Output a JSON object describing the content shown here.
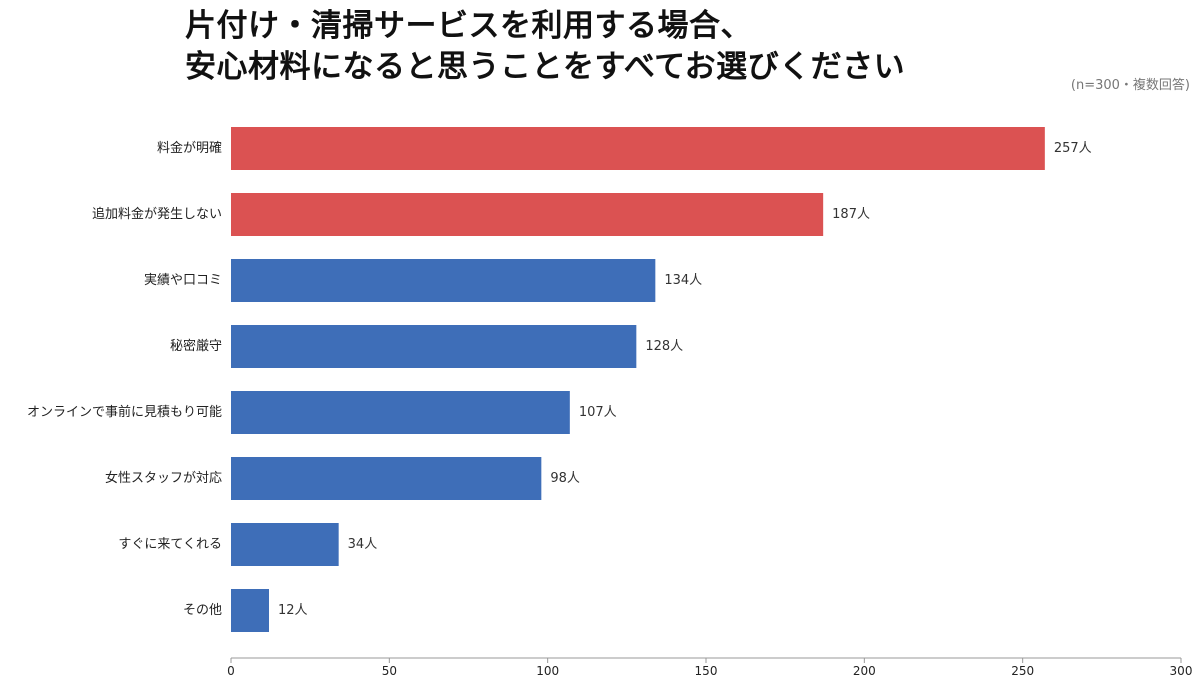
{
  "header": {
    "title_line1": "片付け・清掃サービスを利用する場合、",
    "title_line2": "安心材料になると思うことをすべてお選びください",
    "note": "(n=300・複数回答)"
  },
  "colors": {
    "highlight": "#DB5252",
    "normal": "#3E6EB8",
    "axis": "#999999"
  },
  "chart_data": {
    "type": "bar",
    "orientation": "horizontal",
    "title": "片付け・清掃サービスを利用する場合、安心材料になると思うことをすべてお選びください",
    "note": "(n=300・複数回答)",
    "categories": [
      "料金が明確",
      "追加料金が発生しない",
      "実績や口コミ",
      "秘密厳守",
      "オンラインで事前に見積もり可能",
      "女性スタッフが対応",
      "すぐに来てくれる",
      "その他"
    ],
    "values": [
      257,
      187,
      134,
      128,
      107,
      98,
      34,
      12
    ],
    "value_labels": [
      "257人",
      "187人",
      "134人",
      "128人",
      "107人",
      "98人",
      "34人",
      "12人"
    ],
    "highlighted": [
      true,
      true,
      false,
      false,
      false,
      false,
      false,
      false
    ],
    "xlim": [
      0,
      300
    ],
    "xticks": [
      0,
      50,
      100,
      150,
      200,
      250,
      300
    ],
    "xlabel": "",
    "ylabel": "",
    "grid": false,
    "legend": "none"
  }
}
